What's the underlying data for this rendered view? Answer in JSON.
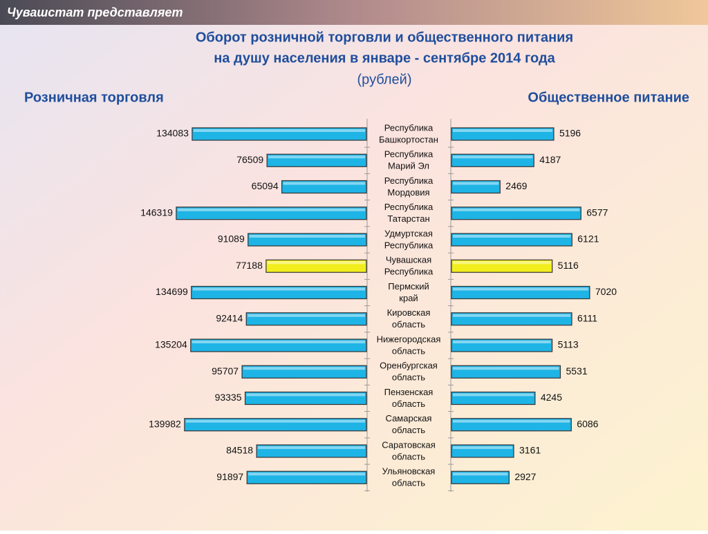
{
  "header": "Чувашстат представляет",
  "chart_data": {
    "type": "butterfly-bar",
    "title": [
      "Оборот розничной торговли и общественного питания",
      "на душу населения в январе - сентябре 2014 года"
    ],
    "subtitle": "(рублей)",
    "categories": [
      [
        "Республика",
        "Башкортостан"
      ],
      [
        "Республика",
        "Марий Эл"
      ],
      [
        "Республика",
        "Мордовия"
      ],
      [
        "Республика",
        "Татарстан"
      ],
      [
        "Удмуртская",
        "Республика"
      ],
      [
        "Чувашская",
        "Республика"
      ],
      [
        "Пермский",
        "край"
      ],
      [
        "Кировская",
        "область"
      ],
      [
        "Нижегородская",
        "область"
      ],
      [
        "Оренбургская",
        "область"
      ],
      [
        "Пензенская",
        "область"
      ],
      [
        "Самарская",
        "область"
      ],
      [
        "Саратовская",
        "область"
      ],
      [
        "Ульяновская",
        "область"
      ]
    ],
    "highlight_index": 5,
    "highlight_color": "#f2ee1e",
    "series": [
      {
        "name": "Розничная торговля",
        "color": "#1eb4e6",
        "side": "left",
        "xlim": [
          0,
          150000
        ],
        "values": [
          134083,
          76509,
          65094,
          146319,
          91089,
          77188,
          134699,
          92414,
          135204,
          95707,
          93335,
          139982,
          84518,
          91897
        ]
      },
      {
        "name": "Общественное  питание",
        "color": "#1eb4e6",
        "side": "right",
        "xlim": [
          0,
          7200
        ],
        "values": [
          5196,
          4187,
          2469,
          6577,
          6121,
          5116,
          7020,
          6111,
          5113,
          5531,
          4245,
          6086,
          3161,
          2927
        ]
      }
    ]
  }
}
